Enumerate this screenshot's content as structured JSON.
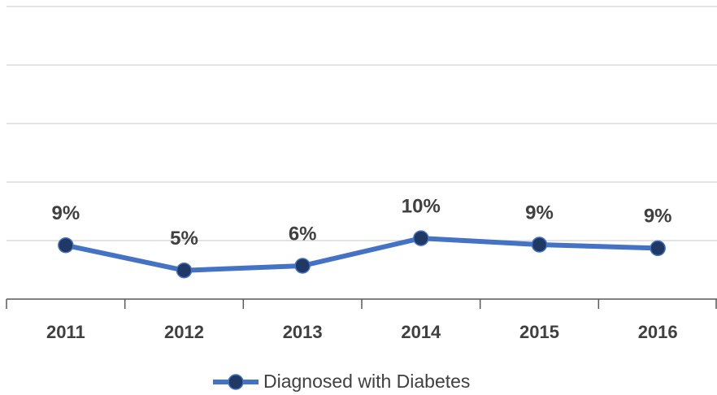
{
  "chart_data": {
    "type": "line",
    "categories": [
      "2011",
      "2012",
      "2013",
      "2014",
      "2015",
      "2016"
    ],
    "series": [
      {
        "name": "Diagnosed with Diabetes",
        "color": "#4472c4",
        "marker_color": "#203864",
        "values": [
          9.2,
          4.9,
          5.7,
          10.4,
          9.3,
          8.7
        ],
        "value_labels": [
          "9%",
          "5%",
          "6%",
          "10%",
          "9%",
          "9%"
        ]
      }
    ],
    "ylim": [
      0,
      50
    ],
    "yticks": [
      0,
      10,
      20,
      30,
      40,
      50
    ],
    "grid": true,
    "legend": "bottom"
  }
}
